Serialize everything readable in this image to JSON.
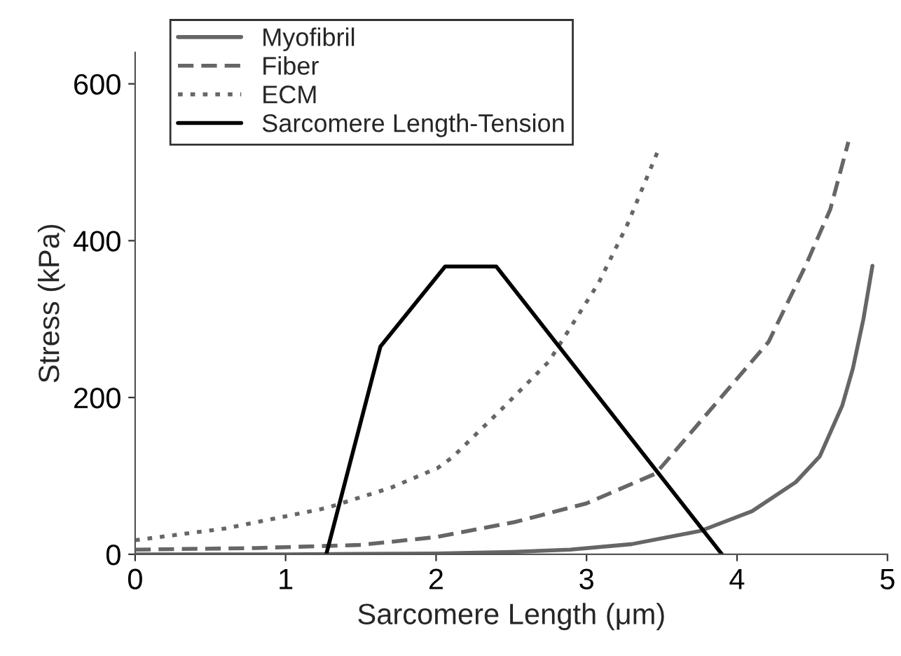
{
  "chart_data": {
    "type": "line",
    "xlabel": "Sarcomere Length (μm)",
    "ylabel": "Stress (kPa)",
    "xlim": [
      0,
      5
    ],
    "ylim": [
      0,
      640
    ],
    "xticks": [
      0,
      1,
      2,
      3,
      4,
      5
    ],
    "yticks": [
      0,
      200,
      400,
      600
    ],
    "grid": false,
    "legend": "top left",
    "series": [
      {
        "name": "Myofibril",
        "color": "#666666",
        "line_style": "solid",
        "x": [
          0,
          1,
          2,
          2.5,
          2.89,
          3.3,
          3.76,
          4.1,
          4.39,
          4.55,
          4.7,
          4.77,
          4.84,
          4.9
        ],
        "values": [
          0,
          0,
          1,
          3,
          6,
          13,
          30,
          55,
          92,
          125,
          190,
          237,
          300,
          368
        ]
      },
      {
        "name": "Fiber",
        "color": "#666666",
        "line_style": "dashed",
        "x": [
          0,
          0.8,
          1.5,
          2.0,
          2.52,
          3.0,
          3.46,
          3.88,
          4.21,
          4.46,
          4.62,
          4.74
        ],
        "values": [
          6,
          8,
          12,
          22,
          41,
          65,
          103,
          197,
          271,
          370,
          440,
          526
        ]
      },
      {
        "name": "ECM",
        "color": "#666666",
        "line_style": "dotted",
        "x": [
          0,
          0.6,
          1.27,
          1.7,
          2.01,
          2.11,
          2.43,
          2.75,
          3.08,
          3.27,
          3.48
        ],
        "values": [
          18,
          33,
          59,
          85,
          110,
          124,
          184,
          246,
          346,
          420,
          517
        ]
      },
      {
        "name": "Sarcomere Length-Tension",
        "color": "#000000",
        "line_style": "solid",
        "x": [
          1.27,
          1.63,
          2.06,
          2.4,
          3.9
        ],
        "values": [
          0,
          265,
          367,
          367,
          0
        ]
      }
    ]
  }
}
